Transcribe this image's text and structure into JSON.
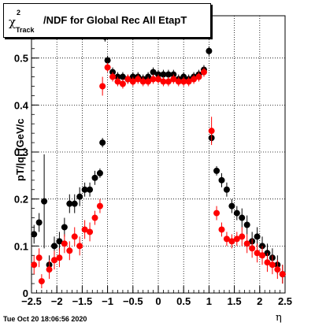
{
  "title": {
    "symbol": "χ",
    "sup": "2",
    "sub": "Track",
    "rest": "/NDF for Global Rec All EtapT"
  },
  "timestamp": "Tue Oct 20 18:06:56 2020",
  "chart_data": {
    "type": "scatter",
    "xlabel": "η",
    "ylabel": "pT/|q| (GeV/c",
    "xlim": [
      -2.5,
      2.5
    ],
    "ylim": [
      0,
      0.59
    ],
    "xticks": [
      "−2.5",
      "−2",
      "−1.5",
      "−1",
      "−0.5",
      "0",
      "0.5",
      "1",
      "1.5",
      "2",
      "2.5"
    ],
    "yticks": [
      "0",
      "0.1",
      "0.2",
      "0.3",
      "0.4",
      "0.5"
    ],
    "grid": true,
    "colors": {
      "black_series": "#000000",
      "red_series": "#ff0000"
    },
    "series": [
      {
        "color": "black",
        "points": [
          [
            -2.45,
            0.125,
            0.02
          ],
          [
            -2.35,
            0.15,
            0.02
          ],
          [
            -2.25,
            0.195,
            0.1
          ],
          [
            -2.15,
            0.06,
            0.02
          ],
          [
            -2.05,
            0.1,
            0.02
          ],
          [
            -1.95,
            0.11,
            0.02
          ],
          [
            -1.85,
            0.14,
            0.02
          ],
          [
            -1.75,
            0.19,
            0.02
          ],
          [
            -1.65,
            0.19,
            0.02
          ],
          [
            -1.55,
            0.205,
            0.02
          ],
          [
            -1.45,
            0.22,
            0.015
          ],
          [
            -1.35,
            0.22,
            0.015
          ],
          [
            -1.25,
            0.245,
            0.015
          ],
          [
            -1.15,
            0.255,
            0.01
          ],
          [
            -1.1,
            0.32,
            0.01
          ],
          [
            -1.05,
            0.545,
            0.01
          ],
          [
            -1.0,
            0.495,
            0.01
          ],
          [
            -0.9,
            0.47,
            0.01
          ],
          [
            -0.8,
            0.46,
            0.01
          ],
          [
            -0.7,
            0.46,
            0.01
          ],
          [
            -0.6,
            0.455,
            0.01
          ],
          [
            -0.5,
            0.46,
            0.01
          ],
          [
            -0.4,
            0.46,
            0.01
          ],
          [
            -0.3,
            0.455,
            0.01
          ],
          [
            -0.2,
            0.46,
            0.01
          ],
          [
            -0.1,
            0.47,
            0.01
          ],
          [
            0.0,
            0.465,
            0.01
          ],
          [
            0.1,
            0.465,
            0.01
          ],
          [
            0.2,
            0.465,
            0.01
          ],
          [
            0.3,
            0.465,
            0.01
          ],
          [
            0.4,
            0.455,
            0.01
          ],
          [
            0.5,
            0.46,
            0.01
          ],
          [
            0.6,
            0.455,
            0.01
          ],
          [
            0.7,
            0.46,
            0.01
          ],
          [
            0.8,
            0.465,
            0.01
          ],
          [
            0.9,
            0.475,
            0.01
          ],
          [
            1.0,
            0.515,
            0.01
          ],
          [
            1.05,
            0.33,
            0.01
          ],
          [
            1.15,
            0.26,
            0.01
          ],
          [
            1.25,
            0.24,
            0.015
          ],
          [
            1.35,
            0.22,
            0.015
          ],
          [
            1.45,
            0.185,
            0.015
          ],
          [
            1.55,
            0.17,
            0.015
          ],
          [
            1.65,
            0.16,
            0.02
          ],
          [
            1.75,
            0.145,
            0.02
          ],
          [
            1.85,
            0.11,
            0.02
          ],
          [
            1.95,
            0.12,
            0.02
          ],
          [
            2.05,
            0.1,
            0.02
          ],
          [
            2.15,
            0.085,
            0.02
          ],
          [
            2.25,
            0.075,
            0.02
          ],
          [
            2.35,
            0.06,
            0.02
          ],
          [
            2.45,
            0.04,
            0.02
          ]
        ]
      },
      {
        "color": "red",
        "points": [
          [
            -2.45,
            0.06,
            0.02
          ],
          [
            -2.35,
            0.075,
            0.02
          ],
          [
            -2.3,
            0.025,
            0.015
          ],
          [
            -2.15,
            0.05,
            0.02
          ],
          [
            -2.05,
            0.07,
            0.02
          ],
          [
            -1.95,
            0.075,
            0.02
          ],
          [
            -1.85,
            0.105,
            0.02
          ],
          [
            -1.75,
            0.09,
            0.02
          ],
          [
            -1.65,
            0.12,
            0.02
          ],
          [
            -1.55,
            0.1,
            0.02
          ],
          [
            -1.45,
            0.135,
            0.02
          ],
          [
            -1.35,
            0.13,
            0.02
          ],
          [
            -1.25,
            0.16,
            0.015
          ],
          [
            -1.15,
            0.185,
            0.015
          ],
          [
            -1.1,
            0.44,
            0.02
          ],
          [
            -1.05,
            0.57,
            0.01
          ],
          [
            -1.0,
            0.48,
            0.01
          ],
          [
            -0.9,
            0.46,
            0.01
          ],
          [
            -0.8,
            0.45,
            0.01
          ],
          [
            -0.7,
            0.445,
            0.01
          ],
          [
            -0.6,
            0.455,
            0.01
          ],
          [
            -0.5,
            0.45,
            0.01
          ],
          [
            -0.4,
            0.455,
            0.01
          ],
          [
            -0.3,
            0.45,
            0.01
          ],
          [
            -0.2,
            0.45,
            0.01
          ],
          [
            -0.1,
            0.455,
            0.01
          ],
          [
            0.0,
            0.455,
            0.01
          ],
          [
            0.1,
            0.45,
            0.01
          ],
          [
            0.2,
            0.45,
            0.01
          ],
          [
            0.3,
            0.455,
            0.01
          ],
          [
            0.4,
            0.45,
            0.01
          ],
          [
            0.5,
            0.45,
            0.01
          ],
          [
            0.6,
            0.45,
            0.01
          ],
          [
            0.7,
            0.455,
            0.01
          ],
          [
            0.8,
            0.46,
            0.01
          ],
          [
            0.9,
            0.47,
            0.01
          ],
          [
            1.0,
            0.565,
            0.01
          ],
          [
            1.05,
            0.345,
            0.03
          ],
          [
            1.15,
            0.17,
            0.015
          ],
          [
            1.25,
            0.135,
            0.015
          ],
          [
            1.35,
            0.115,
            0.015
          ],
          [
            1.45,
            0.11,
            0.015
          ],
          [
            1.55,
            0.115,
            0.015
          ],
          [
            1.65,
            0.12,
            0.02
          ],
          [
            1.75,
            0.105,
            0.02
          ],
          [
            1.85,
            0.095,
            0.02
          ],
          [
            1.95,
            0.085,
            0.02
          ],
          [
            2.05,
            0.08,
            0.02
          ],
          [
            2.15,
            0.065,
            0.02
          ],
          [
            2.25,
            0.06,
            0.02
          ],
          [
            2.35,
            0.05,
            0.02
          ],
          [
            2.45,
            0.04,
            0.02
          ]
        ]
      }
    ]
  }
}
